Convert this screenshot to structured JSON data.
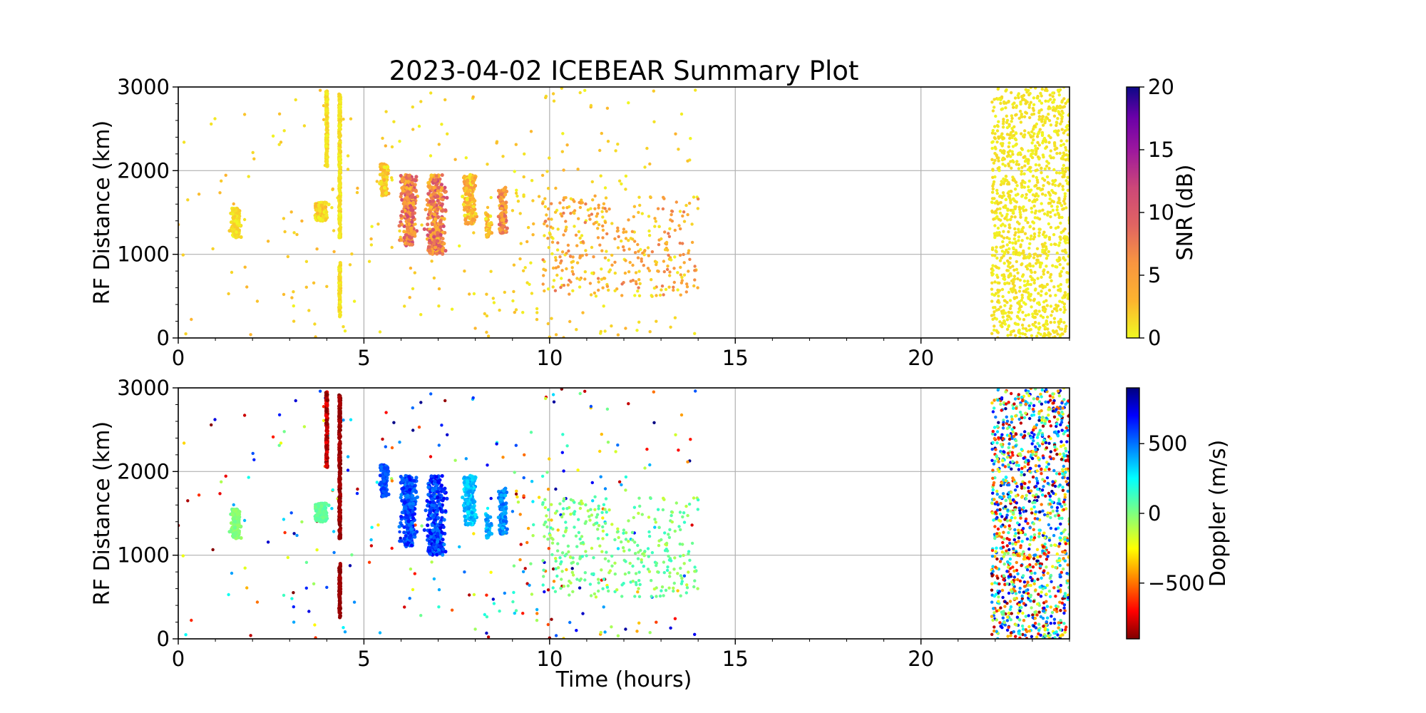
{
  "figure": {
    "title": "2023-04-02 ICEBEAR Summary Plot"
  },
  "chart_data": [
    {
      "type": "scatter",
      "panel": "top",
      "ylabel": "RF Distance (km)",
      "xlabel": "",
      "xlim": [
        0,
        24
      ],
      "ylim": [
        0,
        3000
      ],
      "xticks": [
        "0",
        "5",
        "10",
        "15",
        "20"
      ],
      "yticks": [
        "0",
        "1000",
        "2000",
        "3000"
      ],
      "grid": true,
      "color_variable": "SNR (dB)",
      "colormap": "plasma_r",
      "color_range": [
        0,
        20
      ],
      "colorbar_ticks": [
        "0",
        "5",
        "10",
        "15",
        "20"
      ],
      "point_groups": [
        {
          "x_range": [
            0.0,
            10.0
          ],
          "y_range": [
            0,
            3000
          ],
          "count": 170,
          "value_range": [
            0,
            3
          ],
          "doppler_range": [
            -900,
            900
          ]
        },
        {
          "x_range": [
            9.0,
            14.0
          ],
          "y_range": [
            0,
            3000
          ],
          "count": 120,
          "value_range": [
            0,
            3
          ],
          "doppler_range": [
            -900,
            900
          ]
        },
        {
          "x_range": [
            9.8,
            14.0
          ],
          "y_range": [
            500,
            1700
          ],
          "count": 330,
          "value_range": [
            0,
            8
          ],
          "doppler_range": [
            -150,
            150
          ]
        },
        {
          "x_range": [
            21.9,
            24.0
          ],
          "y_range": [
            0,
            3000
          ],
          "count": 1200,
          "value_range": [
            0,
            1.5
          ],
          "doppler_range": [
            -900,
            900
          ]
        }
      ],
      "clusters": [
        {
          "x_center": 1.55,
          "x_width": 0.35,
          "y_range": [
            1200,
            1550
          ],
          "count": 170,
          "value_range": [
            0,
            2
          ],
          "doppler_range": [
            -60,
            40
          ]
        },
        {
          "x_center": 3.85,
          "x_width": 0.5,
          "y_range": [
            1400,
            1620
          ],
          "count": 150,
          "value_range": [
            0,
            3
          ],
          "doppler_range": [
            20,
            100
          ]
        },
        {
          "x_center": 5.55,
          "x_width": 0.3,
          "y_range": [
            1700,
            2080
          ],
          "count": 90,
          "value_range": [
            0,
            4
          ],
          "doppler_range": [
            500,
            650
          ]
        },
        {
          "x_center": 6.2,
          "x_width": 0.55,
          "y_range": [
            1100,
            1950
          ],
          "count": 280,
          "value_range": [
            2,
            12
          ],
          "doppler_range": [
            450,
            700
          ]
        },
        {
          "x_center": 6.95,
          "x_width": 0.7,
          "y_range": [
            1000,
            1950
          ],
          "count": 320,
          "value_range": [
            2,
            12
          ],
          "doppler_range": [
            450,
            750
          ]
        },
        {
          "x_center": 7.85,
          "x_width": 0.45,
          "y_range": [
            1350,
            1950
          ],
          "count": 180,
          "value_range": [
            0,
            6
          ],
          "doppler_range": [
            250,
            450
          ]
        },
        {
          "x_center": 8.75,
          "x_width": 0.35,
          "y_range": [
            1250,
            1800
          ],
          "count": 120,
          "value_range": [
            2,
            10
          ],
          "doppler_range": [
            350,
            550
          ]
        },
        {
          "x_center": 8.35,
          "x_width": 0.2,
          "y_range": [
            1200,
            1500
          ],
          "count": 40,
          "value_range": [
            0,
            5
          ],
          "doppler_range": [
            300,
            500
          ]
        }
      ],
      "vertical_streaks": [
        {
          "x": 4.0,
          "y_range": [
            2050,
            2950
          ],
          "value_range": [
            0,
            2
          ],
          "doppler_range": [
            -900,
            -700
          ]
        },
        {
          "x": 4.35,
          "y_range": [
            1200,
            2950
          ],
          "value_range": [
            0,
            2
          ],
          "doppler_range": [
            -900,
            -820
          ]
        },
        {
          "x": 4.35,
          "y_range": [
            250,
            900
          ],
          "value_range": [
            0,
            2
          ],
          "doppler_range": [
            -900,
            -820
          ]
        }
      ]
    },
    {
      "type": "scatter",
      "panel": "bottom",
      "ylabel": "RF Distance (km)",
      "xlabel": "Time (hours)",
      "xlim": [
        0,
        24
      ],
      "ylim": [
        0,
        3000
      ],
      "xticks": [
        "0",
        "5",
        "10",
        "15",
        "20"
      ],
      "yticks": [
        "0",
        "1000",
        "2000",
        "3000"
      ],
      "grid": true,
      "color_variable": "Doppler (m/s)",
      "colormap": "jet_r",
      "color_range": [
        -900,
        900
      ],
      "colorbar_ticks": [
        "−500",
        "0",
        "500"
      ],
      "colorbar_tick_values": [
        -500,
        0,
        500
      ],
      "points": "same as top panel, colored by doppler"
    }
  ]
}
